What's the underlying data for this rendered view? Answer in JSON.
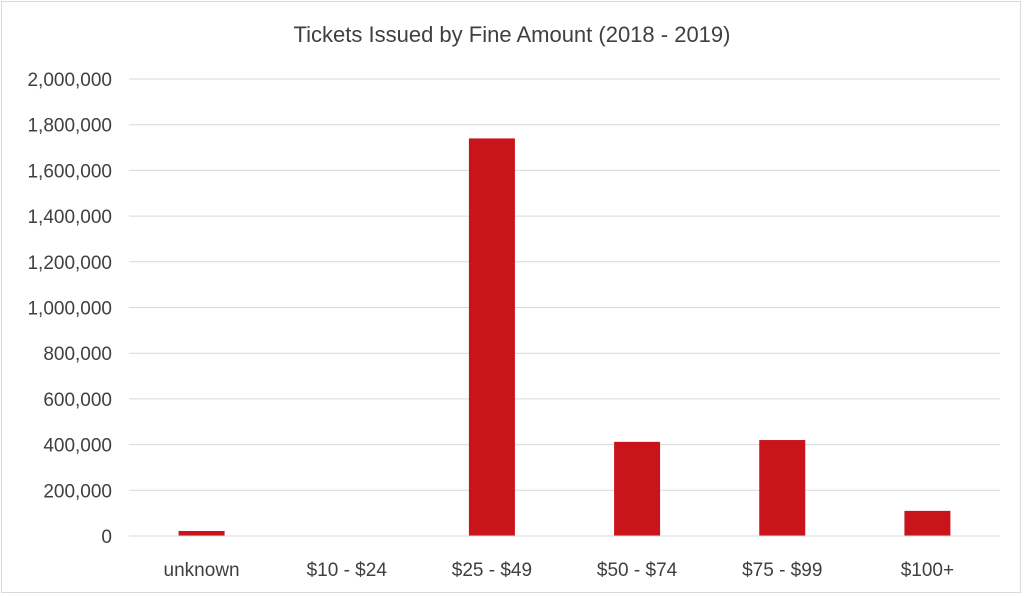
{
  "chart_data": {
    "type": "bar",
    "title": "Tickets Issued by Fine Amount (2018 - 2019)",
    "xlabel": "",
    "ylabel": "",
    "categories": [
      "unknown",
      "$10 - $24",
      "$25 - $49",
      "$50 - $74",
      "$75 - $99",
      "$100+"
    ],
    "values": [
      22000,
      0,
      1740000,
      412000,
      420000,
      110000
    ],
    "ylim": [
      0,
      2000000
    ],
    "yticks": [
      "0",
      "200,000",
      "400,000",
      "600,000",
      "800,000",
      "1,000,000",
      "1,200,000",
      "1,400,000",
      "1,600,000",
      "1,800,000",
      "2,000,000"
    ],
    "bar_color": "#c9141c",
    "grid": true,
    "legend": "none"
  }
}
